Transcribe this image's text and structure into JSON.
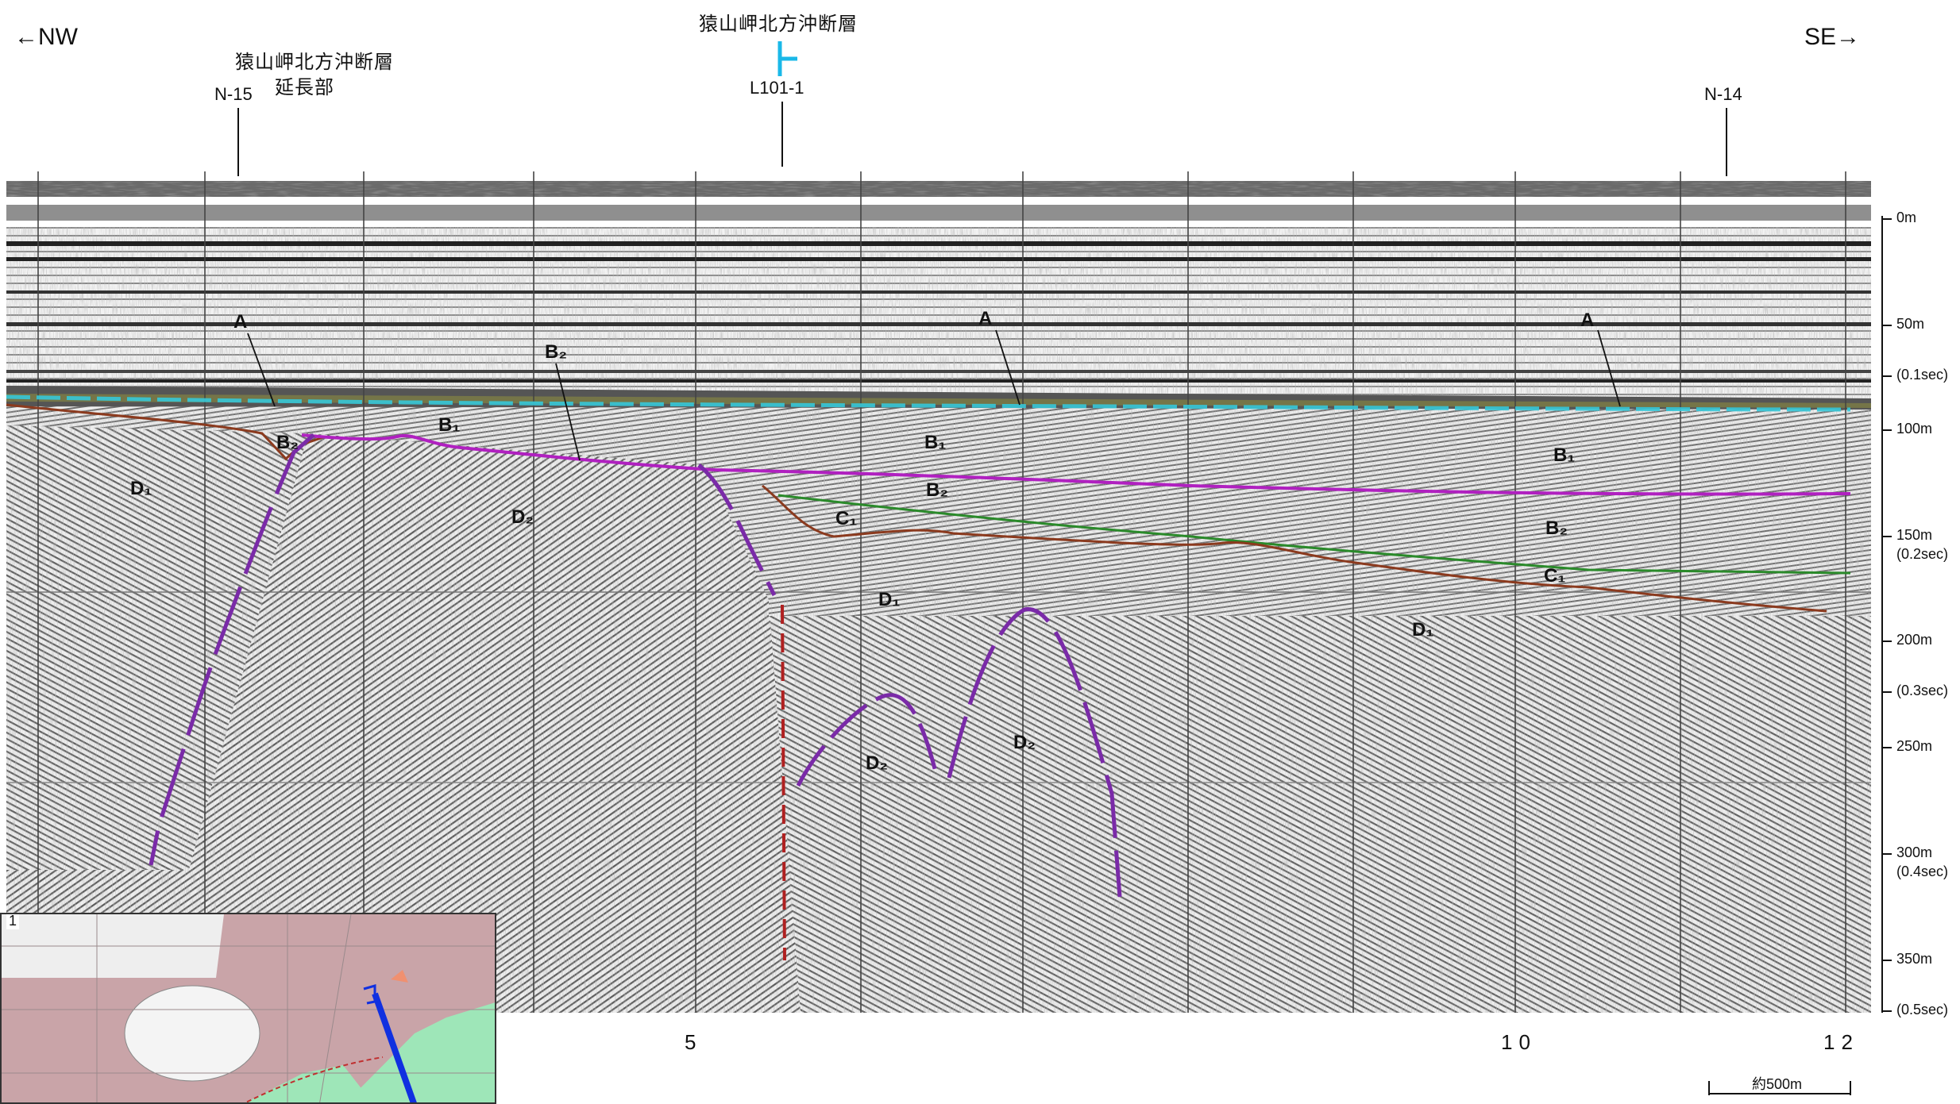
{
  "header": {
    "left_direction": "←NW",
    "right_direction": "SE→",
    "fault_title_top": "猿山岬北方沖断層",
    "fault_extension_line1": "猿山岬北方沖断層",
    "fault_extension_line2": "延長部",
    "crossing_lines": [
      {
        "name": "N-15"
      },
      {
        "name": "L101-1"
      },
      {
        "name": "N-14"
      }
    ]
  },
  "depth_axis": {
    "ticks": [
      "0m",
      "50m",
      "(0.1sec)",
      "100m",
      "150m",
      "(0.2sec)",
      "200m",
      "(0.3sec)",
      "250m",
      "300m",
      "(0.4sec)",
      "350m",
      "(0.5sec)"
    ]
  },
  "horizontal_axis": {
    "ticks": [
      "5",
      "10",
      "12"
    ]
  },
  "scale_bar": {
    "label": "約500m"
  },
  "inset": {
    "number": "1"
  },
  "units": {
    "A": "A",
    "B1": "B₁",
    "B2": "B₂",
    "C1": "C₁",
    "D1": "D₁",
    "D2": "D₂"
  },
  "colors": {
    "fault_marker": "#1ab8e8",
    "horizon_B1_top": "#b020c0",
    "horizon_C1_top": "#2a8a2a",
    "horizon_D_top": "#8b3a1e",
    "fault_trace": "#7a2aa8",
    "fault_dashed_red": "#b02020",
    "seafloor_cyan": "#36c8d8",
    "inset_land": "#c9a4a8",
    "inset_sea": "#9ee6b8",
    "inset_track": "#1030e0"
  }
}
